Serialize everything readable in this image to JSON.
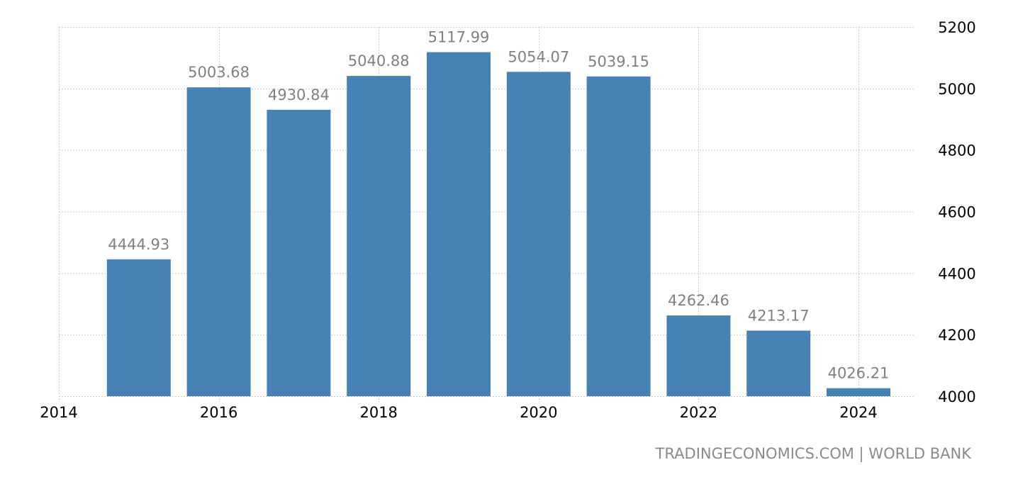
{
  "chart_data": {
    "type": "bar",
    "title": "",
    "xlabel": "",
    "ylabel": "",
    "categories": [
      "2015",
      "2016",
      "2017",
      "2018",
      "2019",
      "2020",
      "2021",
      "2022",
      "2023",
      "2024"
    ],
    "values": [
      4444.93,
      5003.68,
      4930.84,
      5040.88,
      5117.99,
      5054.07,
      5039.15,
      4262.46,
      4213.17,
      4026.21
    ],
    "data_labels": [
      "4444.93",
      "5003.68",
      "4930.84",
      "5040.88",
      "5117.99",
      "5054.07",
      "5039.15",
      "4262.46",
      "4213.17",
      "4026.21"
    ],
    "ylim": [
      4000,
      5200
    ],
    "yticks": [
      4000,
      4200,
      4400,
      4600,
      4800,
      5000,
      5200
    ],
    "xticks": [
      "2014",
      "2016",
      "2018",
      "2020",
      "2022",
      "2024"
    ],
    "y_axis_position": "right",
    "grid": true,
    "legend": null,
    "bar_color": "#4682b4"
  },
  "source": "TRADINGECONOMICS.COM | WORLD BANK"
}
